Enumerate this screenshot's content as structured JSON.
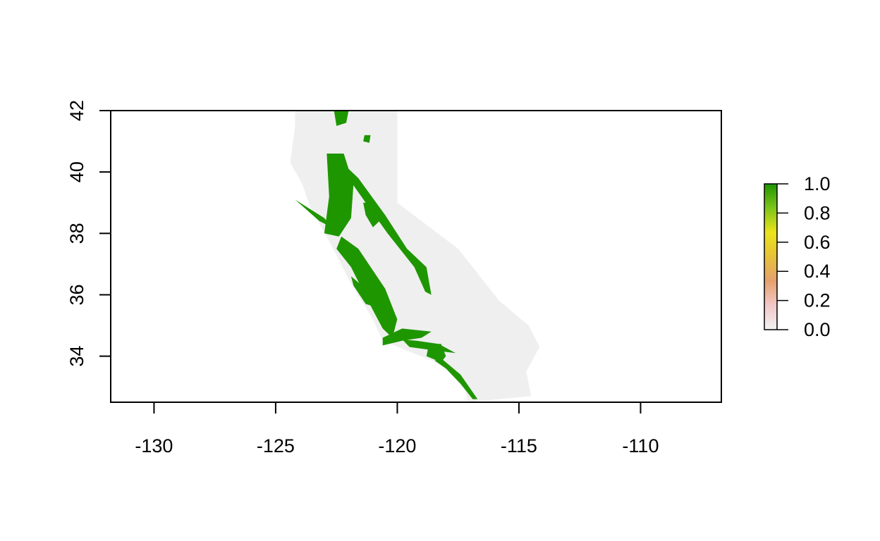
{
  "chart_data": {
    "type": "heatmap",
    "title": "",
    "xlabel": "",
    "ylabel": "",
    "xlim": [
      -131.78,
      -106.68
    ],
    "ylim": [
      32.5,
      42.0
    ],
    "x_ticks": [
      -130,
      -125,
      -120,
      -115,
      -110
    ],
    "x_tick_labels": [
      "-130",
      "-125",
      "-120",
      "-115",
      "-110"
    ],
    "y_ticks": [
      34,
      36,
      38,
      40,
      42
    ],
    "y_tick_labels": [
      "34",
      "36",
      "38",
      "40",
      "42"
    ],
    "grid": false,
    "legend": {
      "placement": "right",
      "min": 0.0,
      "max": 1.0,
      "ticks": [
        0.0,
        0.2,
        0.4,
        0.6,
        0.8,
        1.0
      ],
      "tick_labels": [
        "0.0",
        "0.2",
        "0.4",
        "0.6",
        "0.8",
        "1.0"
      ],
      "colors": [
        "#f2f2f2",
        "#f2c8c8",
        "#e6a06e",
        "#e6c23a",
        "#ebe31a",
        "#7ec51a",
        "#1e9600"
      ]
    },
    "value_colors": {
      "0": "#efefef",
      "1": "#1e9600"
    },
    "region_value0_outline": [
      [
        -124.2,
        42.0
      ],
      [
        -120.0,
        42.0
      ],
      [
        -120.0,
        39.0
      ],
      [
        -117.5,
        37.5
      ],
      [
        -115.8,
        35.8
      ],
      [
        -114.6,
        35.0
      ],
      [
        -114.15,
        34.3
      ],
      [
        -114.7,
        33.5
      ],
      [
        -114.5,
        32.7
      ],
      [
        -117.1,
        32.5
      ],
      [
        -117.3,
        33.2
      ],
      [
        -118.4,
        33.8
      ],
      [
        -120.6,
        34.5
      ],
      [
        -121.0,
        35.2
      ],
      [
        -122.0,
        36.5
      ],
      [
        -122.5,
        37.3
      ],
      [
        -123.6,
        38.9
      ],
      [
        -123.9,
        39.6
      ],
      [
        -124.4,
        40.3
      ],
      [
        -124.2,
        41.5
      ]
    ],
    "regions_value1": [
      [
        [
          -122.9,
          40.6
        ],
        [
          -122.2,
          40.6
        ],
        [
          -121.8,
          39.6
        ],
        [
          -121.9,
          38.5
        ],
        [
          -122.4,
          37.9
        ],
        [
          -123.0,
          38.0
        ],
        [
          -122.8,
          39.2
        ]
      ],
      [
        [
          -122.0,
          40.1
        ],
        [
          -121.6,
          39.8
        ],
        [
          -120.5,
          38.6
        ],
        [
          -119.6,
          37.5
        ],
        [
          -118.8,
          36.9
        ],
        [
          -118.6,
          36.0
        ],
        [
          -118.85,
          36.1
        ],
        [
          -119.3,
          36.9
        ],
        [
          -120.4,
          38.0
        ],
        [
          -121.3,
          39.0
        ],
        [
          -122.1,
          39.9
        ]
      ],
      [
        [
          -124.2,
          39.1
        ],
        [
          -123.2,
          38.4
        ],
        [
          -122.7,
          38.2
        ],
        [
          -123.0,
          38.5
        ],
        [
          -123.8,
          38.9
        ]
      ],
      [
        [
          -121.4,
          39.0
        ],
        [
          -120.9,
          39.0
        ],
        [
          -120.6,
          38.5
        ],
        [
          -121.0,
          38.2
        ],
        [
          -121.3,
          38.6
        ]
      ],
      [
        [
          -122.3,
          37.9
        ],
        [
          -121.6,
          37.5
        ],
        [
          -120.5,
          36.2
        ],
        [
          -120.0,
          35.2
        ],
        [
          -120.2,
          34.6
        ],
        [
          -120.6,
          34.9
        ],
        [
          -121.2,
          35.8
        ],
        [
          -121.9,
          36.9
        ],
        [
          -122.5,
          37.5
        ]
      ],
      [
        [
          -121.9,
          36.6
        ],
        [
          -121.3,
          36.2
        ],
        [
          -120.9,
          35.6
        ],
        [
          -121.3,
          35.7
        ],
        [
          -121.8,
          36.3
        ]
      ],
      [
        [
          -120.6,
          34.6
        ],
        [
          -119.8,
          34.9
        ],
        [
          -118.6,
          34.8
        ],
        [
          -119.0,
          34.6
        ],
        [
          -119.8,
          34.5
        ],
        [
          -120.6,
          34.35
        ]
      ],
      [
        [
          -120.1,
          34.8
        ],
        [
          -119.5,
          34.3
        ],
        [
          -118.6,
          34.2
        ],
        [
          -117.6,
          34.1
        ],
        [
          -118.3,
          34.4
        ],
        [
          -119.2,
          34.5
        ],
        [
          -119.9,
          34.55
        ]
      ],
      [
        [
          -118.7,
          34.4
        ],
        [
          -118.2,
          34.4
        ],
        [
          -118.0,
          34.0
        ],
        [
          -118.2,
          33.8
        ],
        [
          -118.8,
          34.0
        ]
      ],
      [
        [
          -118.3,
          34.0
        ],
        [
          -117.4,
          33.4
        ],
        [
          -116.7,
          32.6
        ],
        [
          -116.9,
          32.6
        ],
        [
          -117.4,
          33.1
        ],
        [
          -118.0,
          33.6
        ],
        [
          -118.45,
          33.85
        ]
      ],
      [
        [
          -122.6,
          42.0
        ],
        [
          -122.0,
          42.0
        ],
        [
          -122.1,
          41.6
        ],
        [
          -122.5,
          41.5
        ]
      ],
      [
        [
          -121.35,
          41.2
        ],
        [
          -121.1,
          41.2
        ],
        [
          -121.15,
          40.95
        ],
        [
          -121.4,
          41.0
        ]
      ],
      [
        [
          -122.5,
          39.5
        ],
        [
          -122.15,
          39.5
        ],
        [
          -122.2,
          39.1
        ],
        [
          -122.5,
          39.2
        ]
      ]
    ]
  }
}
